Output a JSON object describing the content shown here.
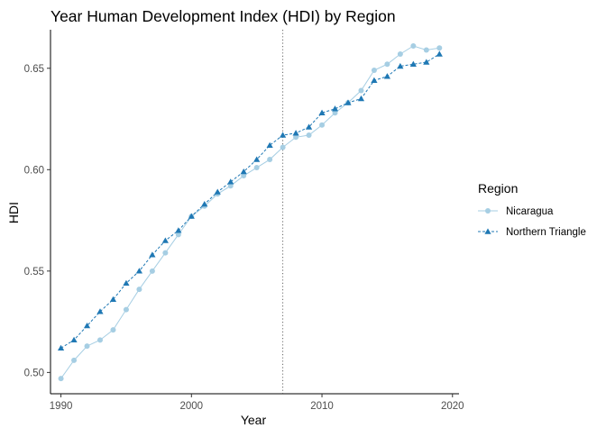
{
  "chart_data": {
    "type": "line",
    "title": "Year Human Development Index (HDI) by Region",
    "xlabel": "Year",
    "ylabel": "HDI",
    "xlim": [
      1989.2,
      2020.5
    ],
    "ylim": [
      0.4895,
      0.669
    ],
    "x_ticks": [
      1990,
      2000,
      2010,
      2020
    ],
    "y_ticks": [
      0.5,
      0.55,
      0.6,
      0.65
    ],
    "y_tick_labels": [
      "0.50",
      "0.55",
      "0.60",
      "0.65"
    ],
    "grid": false,
    "reference_line": {
      "orientation": "vertical",
      "x": 2007,
      "style": "dotted"
    },
    "legend": {
      "title": "Region",
      "placement": "right"
    },
    "x": [
      1990,
      1991,
      1992,
      1993,
      1994,
      1995,
      1996,
      1997,
      1998,
      1999,
      2000,
      2001,
      2002,
      2003,
      2004,
      2005,
      2006,
      2007,
      2008,
      2009,
      2010,
      2011,
      2012,
      2013,
      2014,
      2015,
      2016,
      2017,
      2018,
      2019
    ],
    "series": [
      {
        "name": "Nicaragua",
        "color": "#a6cee3",
        "marker": "circle",
        "line_style": "solid",
        "values": [
          0.497,
          0.506,
          0.513,
          0.516,
          0.521,
          0.531,
          0.541,
          0.55,
          0.559,
          0.568,
          0.577,
          0.582,
          0.588,
          0.592,
          0.597,
          0.601,
          0.605,
          0.611,
          0.616,
          0.617,
          0.622,
          0.628,
          0.633,
          0.639,
          0.649,
          0.652,
          0.657,
          0.661,
          0.659,
          0.66
        ]
      },
      {
        "name": "Northern Triangle",
        "color": "#1f78b4",
        "marker": "triangle",
        "line_style": "dashed",
        "values": [
          0.512,
          0.516,
          0.523,
          0.53,
          0.536,
          0.544,
          0.55,
          0.558,
          0.565,
          0.57,
          0.577,
          0.583,
          0.589,
          0.594,
          0.599,
          0.605,
          0.612,
          0.617,
          0.618,
          0.621,
          0.628,
          0.63,
          0.633,
          0.635,
          0.644,
          0.646,
          0.651,
          0.652,
          0.653,
          0.657
        ]
      }
    ]
  }
}
